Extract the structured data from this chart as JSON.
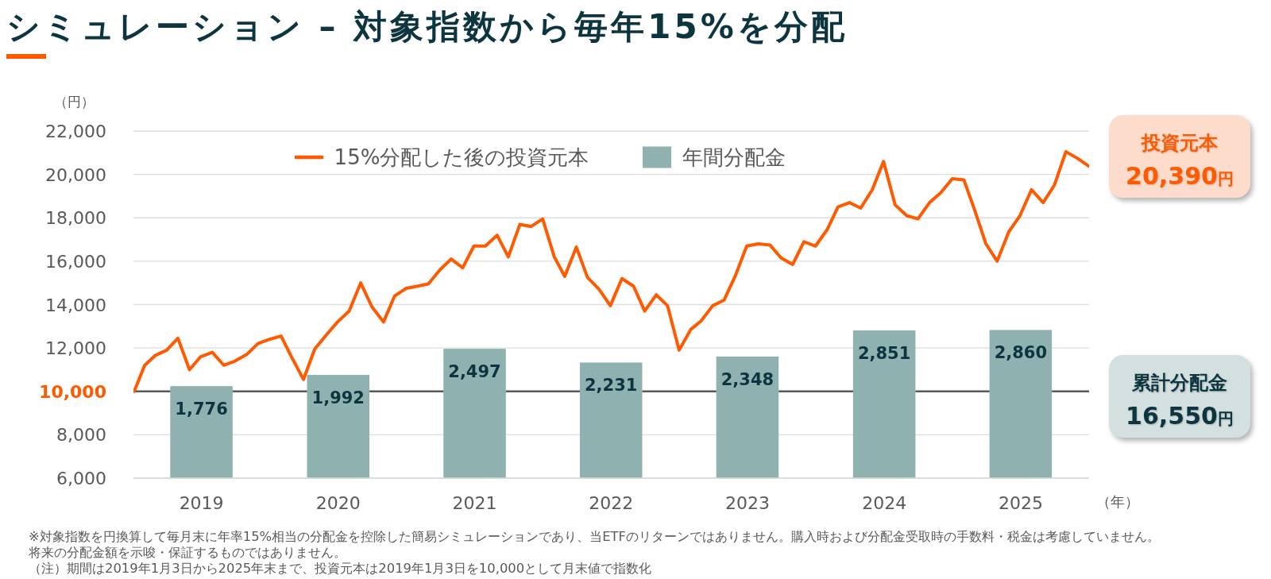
{
  "chart_data": [
    {
      "type": "bar",
      "title": "シミュレーション – 対象指数から毎年15%を分配",
      "xlabel": "（年）",
      "ylabel": "（円）",
      "xlim": [
        "2019-01-01",
        "2026-01-01"
      ],
      "xticks": [
        {
          "value": "2019-07-02",
          "label": "2019"
        },
        {
          "value": "2020-07-02",
          "label": "2020"
        },
        {
          "value": "2021-07-02",
          "label": "2021"
        },
        {
          "value": "2022-07-02",
          "label": "2022"
        },
        {
          "value": "2023-07-02",
          "label": "2023"
        },
        {
          "value": "2024-07-02",
          "label": "2024"
        },
        {
          "value": "2025-07-02",
          "label": "2025"
        }
      ],
      "ylim": [
        6000,
        22000
      ],
      "yticks": [
        {
          "value": 6000,
          "label": "6,000"
        },
        {
          "value": 8000,
          "label": "8,000"
        },
        {
          "value": 10000,
          "label": "10,000"
        },
        {
          "value": 12000,
          "label": "12,000"
        },
        {
          "value": 14000,
          "label": "14,000"
        },
        {
          "value": 16000,
          "label": "16,000"
        },
        {
          "value": 18000,
          "label": "18,000"
        },
        {
          "value": 20000,
          "label": "20,000"
        },
        {
          "value": 22000,
          "label": "22,000"
        }
      ],
      "y2lim": [
        0,
        6700
      ],
      "grid": "y",
      "legend": "top",
      "ref_lines": [
        {
          "axis": "y",
          "value": 10000,
          "color": "#595959"
        }
      ],
      "series": [
        {
          "name": "15%分配した後の投資元本",
          "type": "line",
          "color": "#ff5a00",
          "x": [
            "2019-01-03",
            "2019-01-31",
            "2019-02-28",
            "2019-03-31",
            "2019-04-30",
            "2019-05-31",
            "2019-06-30",
            "2019-07-31",
            "2019-08-31",
            "2019-09-30",
            "2019-10-31",
            "2019-11-30",
            "2019-12-31",
            "2020-01-31",
            "2020-02-29",
            "2020-03-31",
            "2020-04-30",
            "2020-05-31",
            "2020-06-30",
            "2020-07-31",
            "2020-08-31",
            "2020-09-30",
            "2020-10-31",
            "2020-11-30",
            "2020-12-31",
            "2021-01-31",
            "2021-02-28",
            "2021-03-31",
            "2021-04-30",
            "2021-05-31",
            "2021-06-30",
            "2021-07-31",
            "2021-08-31",
            "2021-09-30",
            "2021-10-31",
            "2021-11-30",
            "2021-12-31",
            "2022-01-31",
            "2022-02-28",
            "2022-03-31",
            "2022-04-30",
            "2022-05-31",
            "2022-06-30",
            "2022-07-31",
            "2022-08-31",
            "2022-09-30",
            "2022-10-31",
            "2022-11-30",
            "2022-12-31",
            "2023-01-31",
            "2023-02-28",
            "2023-03-31",
            "2023-04-30",
            "2023-05-31",
            "2023-06-30",
            "2023-07-31",
            "2023-08-31",
            "2023-09-30",
            "2023-10-31",
            "2023-11-30",
            "2023-12-31",
            "2024-01-31",
            "2024-02-29",
            "2024-03-31",
            "2024-04-30",
            "2024-05-31",
            "2024-06-30",
            "2024-07-31",
            "2024-08-31",
            "2024-09-30",
            "2024-10-31",
            "2024-11-30",
            "2024-12-31",
            "2025-01-31",
            "2025-02-28",
            "2025-03-31",
            "2025-04-30",
            "2025-05-31",
            "2025-06-30",
            "2025-07-31",
            "2025-08-31",
            "2025-09-30",
            "2025-10-31",
            "2025-11-30",
            "2025-12-31"
          ],
          "values": [
            10000,
            11200,
            11650,
            11900,
            12450,
            11000,
            11600,
            11800,
            11200,
            11400,
            11700,
            12200,
            12400,
            12550,
            11550,
            10550,
            11950,
            12600,
            13200,
            13700,
            15000,
            13900,
            13200,
            14400,
            14750,
            14850,
            14950,
            15600,
            16100,
            15700,
            16700,
            16700,
            17200,
            16200,
            17700,
            17600,
            17950,
            16200,
            15300,
            16650,
            15250,
            14700,
            13950,
            15200,
            14850,
            13700,
            14450,
            13950,
            11900,
            12850,
            13250,
            13950,
            14200,
            15350,
            16700,
            16800,
            16750,
            16150,
            15850,
            16900,
            16700,
            17450,
            18500,
            18700,
            18450,
            19300,
            20600,
            18600,
            18100,
            17950,
            18700,
            19150,
            19800,
            19750,
            18400,
            16800,
            16000,
            17350,
            18100,
            19300,
            18700,
            19500,
            21050,
            20750,
            20390
          ]
        },
        {
          "name": "年間分配金",
          "axis": "y2",
          "color": "#8fb1b0",
          "x": [
            "2019-07-02",
            "2020-07-02",
            "2021-07-02",
            "2022-07-02",
            "2023-07-02",
            "2024-07-02",
            "2025-07-02"
          ],
          "values": [
            1776,
            1992,
            2497,
            2231,
            2348,
            2851,
            2860
          ],
          "value_labels": [
            "1,776",
            "1,992",
            "2,497",
            "2,231",
            "2,348",
            "2,851",
            "2,860"
          ]
        }
      ],
      "annotations": [
        "※対象指数を円換算して毎月末に年率15%相当の分配金を控除した簡易シミュレーションであり、当ETFのリターンではありません。購入時および分配金受取時の手数料・税金は考慮していません。",
        "将来の分配金額を示唆・保証するものではありません。",
        "（注）期間は2019年1月3日から2025年末まで、投資元本は2019年1月3日を10,000として月末値で指数化"
      ]
    },
    {
      "type": "other",
      "title": "投資元本",
      "annotations": [
        "20,390円"
      ]
    },
    {
      "type": "other",
      "title": "累計分配金",
      "annotations": [
        "16,550円"
      ]
    }
  ]
}
